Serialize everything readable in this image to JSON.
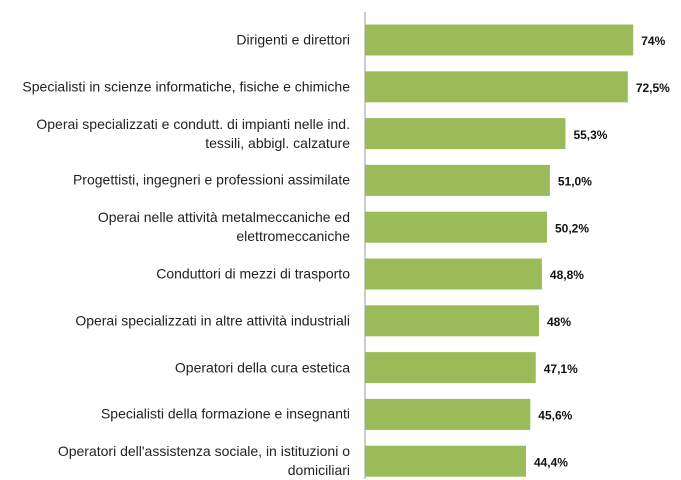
{
  "chart_data": {
    "type": "bar",
    "orientation": "horizontal",
    "categories": [
      "Dirigenti e direttori",
      "Specialisti in scienze informatiche, fisiche e chimiche",
      "Operai specializzati e condutt. di impianti nelle ind. tessili, abbigl. calzature",
      "Progettisti, ingegneri e professioni assimilate",
      "Operai nelle attività metalmeccaniche ed elettromeccaniche",
      "Conduttori di mezzi di trasporto",
      "Operai specializzati in altre attività industriali",
      "Operatori della cura estetica",
      "Specialisti della formazione e insegnanti",
      "Operatori dell'assistenza sociale, in istituzioni o domiciliari"
    ],
    "values": [
      74,
      72.5,
      55.3,
      51.0,
      50.2,
      48.8,
      48,
      47.1,
      45.6,
      44.4
    ],
    "value_labels": [
      "74%",
      "72,5%",
      "55,3%",
      "51,0%",
      "50,2%",
      "48,8%",
      "48%",
      "47,1%",
      "45,6%",
      "44,4%"
    ],
    "color": "#9bbb59",
    "xlim": [
      0,
      80
    ]
  }
}
